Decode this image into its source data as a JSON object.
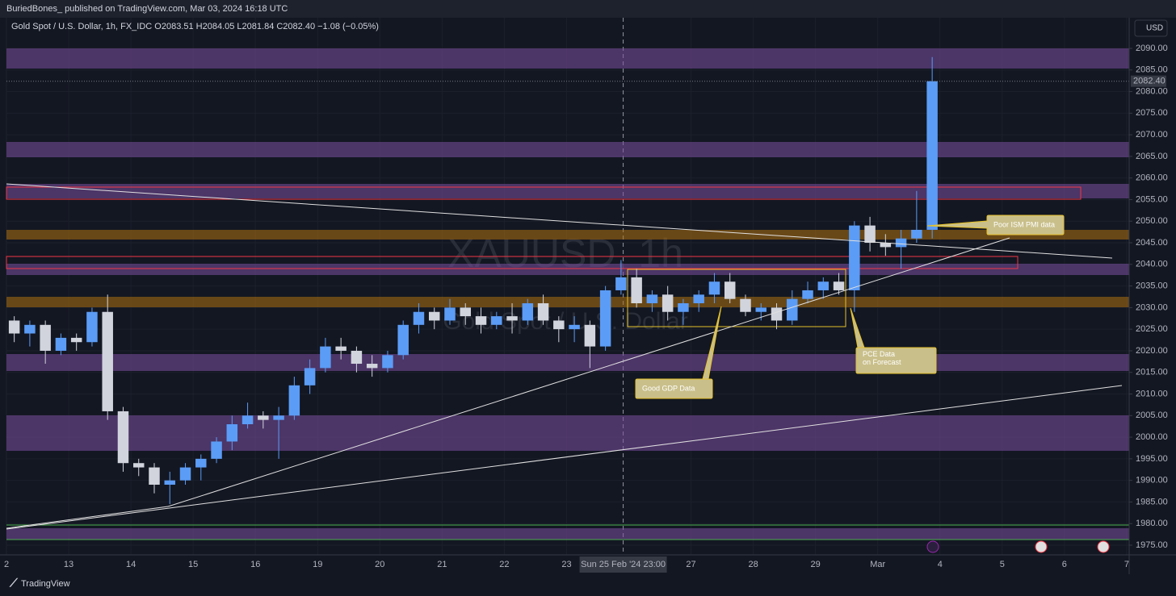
{
  "header": {
    "publisher": "BuriedBones_ published on TradingView.com, Mar 03, 2024 16:18 UTC",
    "currency_button": "USD",
    "footer_brand": "TradingView"
  },
  "chart_data": {
    "type": "candlestick",
    "legend": "Gold Spot / U.S. Dollar, 1h, FX_IDC  O2083.51  H2084.05  L2081.84  C2082.40  −1.08 (−0.05%)",
    "watermark": "XAUUSD, 1h",
    "watermark_subtitle": "Gold Spot / U.S. Dollar",
    "annotations": [
      "Good GDP Data",
      "PCE Data on Forecast",
      "Poor ISM PMI data"
    ],
    "up_color": "#5b9cf6",
    "down_color": "#d1d4dc",
    "x": [
      0.125,
      0.375,
      0.625,
      0.875,
      1.125,
      1.375,
      1.625,
      1.875,
      2.125,
      2.375,
      2.625,
      2.875,
      3.125,
      3.375,
      3.625,
      3.875,
      4.125,
      4.375,
      4.625,
      4.875,
      5.125,
      5.375,
      5.625,
      5.875,
      6.125,
      6.375,
      6.625,
      6.875,
      7.125,
      7.375,
      7.625,
      7.875,
      8.125,
      8.375,
      8.625,
      8.875,
      9.125,
      9.375,
      9.625,
      9.875,
      10.125,
      10.375,
      10.625,
      10.875,
      11.125,
      11.375,
      11.625,
      11.875,
      12.125,
      12.375,
      12.625,
      12.875,
      13.125,
      13.375,
      13.625,
      13.875,
      14.125,
      14.375,
      14.625,
      14.875
    ],
    "open": [
      2027,
      2024,
      2026,
      2020,
      2023,
      2022,
      2029,
      2006,
      1994,
      1993,
      1989,
      1990,
      1993,
      1995,
      1999,
      2003,
      2005,
      2004,
      2005,
      2012,
      2016,
      2021,
      2020,
      2017,
      2016,
      2019,
      2026,
      2029,
      2027,
      2030,
      2028,
      2026,
      2028,
      2027,
      2031,
      2027,
      2025,
      2026,
      2021,
      2034,
      2037,
      2031,
      2033,
      2029,
      2031,
      2033,
      2036,
      2032,
      2029,
      2030,
      2027,
      2032,
      2034,
      2036,
      2034,
      2049,
      2045,
      2044,
      2046,
      2048
    ],
    "high": [
      2028,
      2027,
      2027,
      2024,
      2024,
      2030,
      2033,
      2007,
      1995,
      1994,
      1992,
      1994,
      1996,
      2000,
      2005,
      2008,
      2006,
      2007,
      2014,
      2018,
      2023,
      2023,
      2021,
      2019,
      2020,
      2027,
      2031,
      2030,
      2032,
      2031,
      2030,
      2029,
      2031,
      2032,
      2033,
      2028,
      2028,
      2027,
      2035,
      2041,
      2039,
      2034,
      2035,
      2032,
      2034,
      2038,
      2038,
      2033,
      2031,
      2031,
      2034,
      2036,
      2037,
      2038,
      2050,
      2051,
      2047,
      2048,
      2057,
      2088
    ],
    "low": [
      2022,
      2021,
      2017,
      2019,
      2020,
      2021,
      2004,
      1992,
      1991,
      1987,
      1984.5,
      1989,
      1990,
      1994,
      1997,
      2002,
      2002,
      1995,
      2004,
      2010,
      2015,
      2018,
      2015,
      2014,
      2015,
      2018,
      2024,
      2025,
      2026,
      2026,
      2024,
      2025,
      2024,
      2026,
      2026,
      2022,
      2022,
      2016,
      2020,
      2033,
      2030,
      2029,
      2027,
      2026,
      2029,
      2031,
      2031,
      2028,
      2027,
      2025,
      2026,
      2031,
      2032,
      2033,
      2029,
      2043,
      2042,
      2039,
      2045,
      2046
    ],
    "close": [
      2024,
      2026,
      2020,
      2023,
      2022,
      2029,
      2006,
      1994,
      1993,
      1989,
      1990,
      1993,
      1995,
      1999,
      2003,
      2005,
      2004,
      2005,
      2012,
      2016,
      2021,
      2020,
      2017,
      2016,
      2019,
      2026,
      2029,
      2027,
      2030,
      2028,
      2026,
      2028,
      2027,
      2031,
      2027,
      2025,
      2026,
      2021,
      2034,
      2037,
      2031,
      2033,
      2029,
      2031,
      2033,
      2036,
      2032,
      2029,
      2030,
      2027,
      2032,
      2034,
      2036,
      2034,
      2049,
      2045,
      2044,
      2046,
      2048,
      2082.4
    ],
    "last_price_label": "2082.40",
    "xlim": [
      0,
      18.04
    ],
    "ylim": [
      1972.76,
      2097.09
    ],
    "xticks": [
      {
        "value": 0,
        "label": "2"
      },
      {
        "value": 1,
        "label": "13"
      },
      {
        "value": 2,
        "label": "14"
      },
      {
        "value": 3,
        "label": "15"
      },
      {
        "value": 4,
        "label": "16"
      },
      {
        "value": 5,
        "label": "19"
      },
      {
        "value": 6,
        "label": "20"
      },
      {
        "value": 7,
        "label": "21"
      },
      {
        "value": 8,
        "label": "22"
      },
      {
        "value": 9,
        "label": "23"
      },
      {
        "value": 11,
        "label": "27"
      },
      {
        "value": 12,
        "label": "28"
      },
      {
        "value": 13,
        "label": "29"
      },
      {
        "value": 14,
        "label": "Mar"
      },
      {
        "value": 15,
        "label": "4"
      },
      {
        "value": 16,
        "label": "5"
      },
      {
        "value": 17,
        "label": "6"
      },
      {
        "value": 18,
        "label": "7"
      }
    ],
    "crosshair": {
      "value": 9.91,
      "label": "Sun 25 Feb '24   23:00"
    },
    "yticks": [
      {
        "value": 1975,
        "label": "1975.00"
      },
      {
        "value": 1980,
        "label": "1980.00"
      },
      {
        "value": 1985,
        "label": "1985.00"
      },
      {
        "value": 1990,
        "label": "1990.00"
      },
      {
        "value": 1995,
        "label": "1995.00"
      },
      {
        "value": 2000,
        "label": "2000.00"
      },
      {
        "value": 2005,
        "label": "2005.00"
      },
      {
        "value": 2010,
        "label": "2010.00"
      },
      {
        "value": 2015,
        "label": "2015.00"
      },
      {
        "value": 2020,
        "label": "2020.00"
      },
      {
        "value": 2025,
        "label": "2025.00"
      },
      {
        "value": 2030,
        "label": "2030.00"
      },
      {
        "value": 2035,
        "label": "2035.00"
      },
      {
        "value": 2040,
        "label": "2040.00"
      },
      {
        "value": 2045,
        "label": "2045.00"
      },
      {
        "value": 2050,
        "label": "2050.00"
      },
      {
        "value": 2055,
        "label": "2055.00"
      },
      {
        "value": 2060,
        "label": "2060.00"
      },
      {
        "value": 2065,
        "label": "2065.00"
      },
      {
        "value": 2070,
        "label": "2070.00"
      },
      {
        "value": 2075,
        "label": "2075.00"
      },
      {
        "value": 2080,
        "label": "2080.00"
      },
      {
        "value": 2085,
        "label": "2085.00"
      },
      {
        "value": 2090,
        "label": "2090.00"
      }
    ],
    "grid": true
  }
}
